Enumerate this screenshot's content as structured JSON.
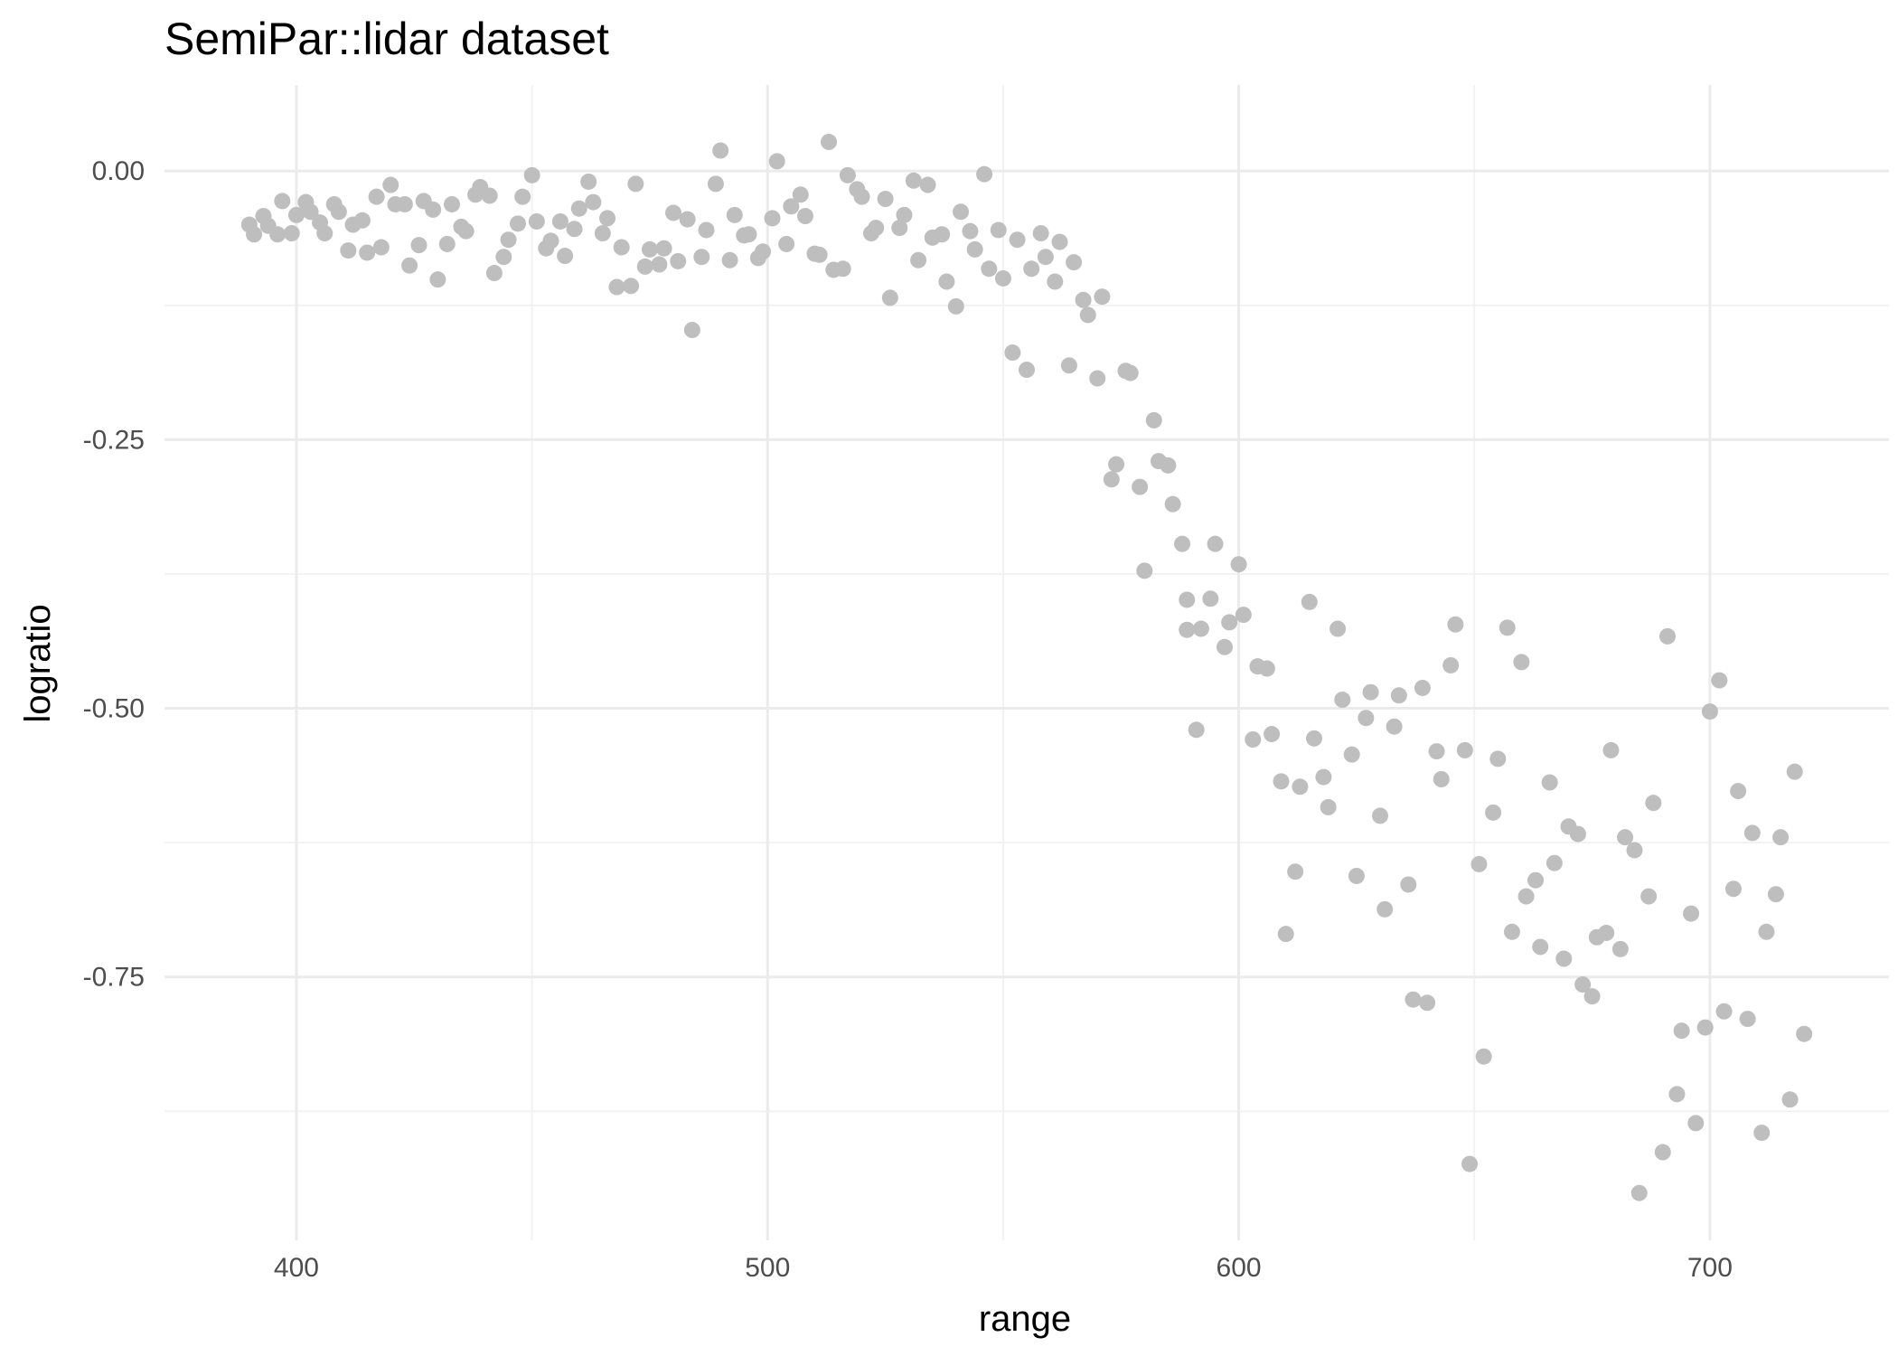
{
  "chart_data": {
    "type": "scatter",
    "title": "SemiPar::lidar dataset",
    "xlabel": "range",
    "ylabel": "logratio",
    "xlim": [
      372,
      738
    ],
    "ylim": [
      -0.995,
      0.08
    ],
    "x_ticks": [
      400,
      500,
      600,
      700
    ],
    "x_tick_labels": [
      "400",
      "500",
      "600",
      "700"
    ],
    "y_ticks": [
      0.0,
      -0.25,
      -0.5,
      -0.75
    ],
    "y_tick_labels": [
      "0.00",
      "-0.25",
      "-0.50",
      "-0.75"
    ],
    "grid": true,
    "point_color": "#bebebe",
    "points": [
      [
        390,
        -0.05
      ],
      [
        391,
        -0.059
      ],
      [
        393,
        -0.042
      ],
      [
        394,
        -0.051
      ],
      [
        396,
        -0.059
      ],
      [
        397,
        -0.028
      ],
      [
        399,
        -0.058
      ],
      [
        400,
        -0.041
      ],
      [
        402,
        -0.029
      ],
      [
        403,
        -0.038
      ],
      [
        405,
        -0.048
      ],
      [
        406,
        -0.058
      ],
      [
        408,
        -0.031
      ],
      [
        409,
        -0.038
      ],
      [
        411,
        -0.074
      ],
      [
        412,
        -0.05
      ],
      [
        414,
        -0.046
      ],
      [
        415,
        -0.076
      ],
      [
        417,
        -0.024
      ],
      [
        418,
        -0.071
      ],
      [
        420,
        -0.013
      ],
      [
        421,
        -0.031
      ],
      [
        423,
        -0.031
      ],
      [
        424,
        -0.088
      ],
      [
        426,
        -0.069
      ],
      [
        427,
        -0.028
      ],
      [
        429,
        -0.036
      ],
      [
        430,
        -0.101
      ],
      [
        432,
        -0.068
      ],
      [
        433,
        -0.031
      ],
      [
        435,
        -0.052
      ],
      [
        436,
        -0.056
      ],
      [
        438,
        -0.022
      ],
      [
        439,
        -0.015
      ],
      [
        441,
        -0.023
      ],
      [
        442,
        -0.095
      ],
      [
        444,
        -0.08
      ],
      [
        445,
        -0.064
      ],
      [
        447,
        -0.049
      ],
      [
        448,
        -0.024
      ],
      [
        450,
        -0.004
      ],
      [
        451,
        -0.047
      ],
      [
        453,
        -0.072
      ],
      [
        454,
        -0.065
      ],
      [
        456,
        -0.047
      ],
      [
        457,
        -0.079
      ],
      [
        459,
        -0.054
      ],
      [
        460,
        -0.035
      ],
      [
        462,
        -0.01
      ],
      [
        463,
        -0.029
      ],
      [
        465,
        -0.058
      ],
      [
        466,
        -0.044
      ],
      [
        468,
        -0.108
      ],
      [
        469,
        -0.071
      ],
      [
        471,
        -0.107
      ],
      [
        472,
        -0.012
      ],
      [
        474,
        -0.089
      ],
      [
        475,
        -0.073
      ],
      [
        477,
        -0.087
      ],
      [
        478,
        -0.072
      ],
      [
        480,
        -0.039
      ],
      [
        481,
        -0.084
      ],
      [
        483,
        -0.045
      ],
      [
        484,
        -0.148
      ],
      [
        486,
        -0.08
      ],
      [
        487,
        -0.055
      ],
      [
        489,
        -0.012
      ],
      [
        490,
        0.019
      ],
      [
        492,
        -0.083
      ],
      [
        493,
        -0.041
      ],
      [
        495,
        -0.06
      ],
      [
        496,
        -0.059
      ],
      [
        498,
        -0.081
      ],
      [
        499,
        -0.075
      ],
      [
        501,
        -0.044
      ],
      [
        502,
        0.009
      ],
      [
        504,
        -0.068
      ],
      [
        505,
        -0.033
      ],
      [
        507,
        -0.022
      ],
      [
        508,
        -0.042
      ],
      [
        510,
        -0.077
      ],
      [
        511,
        -0.078
      ],
      [
        513,
        0.027
      ],
      [
        514,
        -0.092
      ],
      [
        516,
        -0.091
      ],
      [
        517,
        -0.004
      ],
      [
        519,
        -0.017
      ],
      [
        520,
        -0.024
      ],
      [
        522,
        -0.058
      ],
      [
        523,
        -0.053
      ],
      [
        525,
        -0.026
      ],
      [
        526,
        -0.118
      ],
      [
        528,
        -0.053
      ],
      [
        529,
        -0.041
      ],
      [
        531,
        -0.009
      ],
      [
        532,
        -0.083
      ],
      [
        534,
        -0.013
      ],
      [
        535,
        -0.062
      ],
      [
        537,
        -0.059
      ],
      [
        538,
        -0.103
      ],
      [
        540,
        -0.126
      ],
      [
        541,
        -0.038
      ],
      [
        543,
        -0.056
      ],
      [
        544,
        -0.073
      ],
      [
        546,
        -0.003
      ],
      [
        547,
        -0.091
      ],
      [
        549,
        -0.055
      ],
      [
        550,
        -0.1
      ],
      [
        552,
        -0.169
      ],
      [
        553,
        -0.064
      ],
      [
        555,
        -0.185
      ],
      [
        556,
        -0.091
      ],
      [
        558,
        -0.058
      ],
      [
        559,
        -0.08
      ],
      [
        561,
        -0.103
      ],
      [
        562,
        -0.066
      ],
      [
        564,
        -0.181
      ],
      [
        565,
        -0.085
      ],
      [
        567,
        -0.12
      ],
      [
        568,
        -0.134
      ],
      [
        570,
        -0.193
      ],
      [
        571,
        -0.117
      ],
      [
        573,
        -0.287
      ],
      [
        574,
        -0.273
      ],
      [
        576,
        -0.186
      ],
      [
        577,
        -0.188
      ],
      [
        579,
        -0.294
      ],
      [
        580,
        -0.372
      ],
      [
        582,
        -0.232
      ],
      [
        583,
        -0.27
      ],
      [
        585,
        -0.274
      ],
      [
        586,
        -0.31
      ],
      [
        588,
        -0.347
      ],
      [
        589,
        -0.399
      ],
      [
        589,
        -0.427
      ],
      [
        591,
        -0.52
      ],
      [
        592,
        -0.426
      ],
      [
        594,
        -0.398
      ],
      [
        595,
        -0.347
      ],
      [
        597,
        -0.443
      ],
      [
        598,
        -0.42
      ],
      [
        600,
        -0.366
      ],
      [
        601,
        -0.413
      ],
      [
        603,
        -0.529
      ],
      [
        604,
        -0.461
      ],
      [
        606,
        -0.463
      ],
      [
        607,
        -0.524
      ],
      [
        609,
        -0.568
      ],
      [
        610,
        -0.71
      ],
      [
        612,
        -0.652
      ],
      [
        613,
        -0.573
      ],
      [
        615,
        -0.401
      ],
      [
        616,
        -0.528
      ],
      [
        618,
        -0.564
      ],
      [
        619,
        -0.592
      ],
      [
        621,
        -0.426
      ],
      [
        622,
        -0.492
      ],
      [
        624,
        -0.543
      ],
      [
        625,
        -0.656
      ],
      [
        627,
        -0.509
      ],
      [
        628,
        -0.485
      ],
      [
        630,
        -0.6
      ],
      [
        631,
        -0.687
      ],
      [
        633,
        -0.517
      ],
      [
        634,
        -0.488
      ],
      [
        636,
        -0.664
      ],
      [
        637,
        -0.771
      ],
      [
        639,
        -0.481
      ],
      [
        640,
        -0.774
      ],
      [
        642,
        -0.54
      ],
      [
        643,
        -0.566
      ],
      [
        645,
        -0.46
      ],
      [
        646,
        -0.422
      ],
      [
        648,
        -0.539
      ],
      [
        649,
        -0.924
      ],
      [
        651,
        -0.645
      ],
      [
        652,
        -0.824
      ],
      [
        654,
        -0.597
      ],
      [
        655,
        -0.547
      ],
      [
        657,
        -0.425
      ],
      [
        658,
        -0.708
      ],
      [
        660,
        -0.457
      ],
      [
        661,
        -0.675
      ],
      [
        663,
        -0.66
      ],
      [
        664,
        -0.722
      ],
      [
        666,
        -0.569
      ],
      [
        667,
        -0.644
      ],
      [
        669,
        -0.733
      ],
      [
        670,
        -0.61
      ],
      [
        672,
        -0.617
      ],
      [
        673,
        -0.757
      ],
      [
        675,
        -0.768
      ],
      [
        676,
        -0.713
      ],
      [
        678,
        -0.709
      ],
      [
        679,
        -0.539
      ],
      [
        681,
        -0.724
      ],
      [
        682,
        -0.62
      ],
      [
        684,
        -0.632
      ],
      [
        685,
        -0.951
      ],
      [
        687,
        -0.675
      ],
      [
        688,
        -0.588
      ],
      [
        690,
        -0.913
      ],
      [
        691,
        -0.433
      ],
      [
        693,
        -0.859
      ],
      [
        694,
        -0.8
      ],
      [
        696,
        -0.691
      ],
      [
        697,
        -0.886
      ],
      [
        699,
        -0.797
      ],
      [
        700,
        -0.503
      ],
      [
        702,
        -0.474
      ],
      [
        703,
        -0.782
      ],
      [
        705,
        -0.668
      ],
      [
        706,
        -0.577
      ],
      [
        708,
        -0.789
      ],
      [
        709,
        -0.616
      ],
      [
        711,
        -0.895
      ],
      [
        712,
        -0.708
      ],
      [
        714,
        -0.673
      ],
      [
        715,
        -0.62
      ],
      [
        717,
        -0.864
      ],
      [
        718,
        -0.559
      ],
      [
        720,
        -0.803
      ]
    ]
  }
}
